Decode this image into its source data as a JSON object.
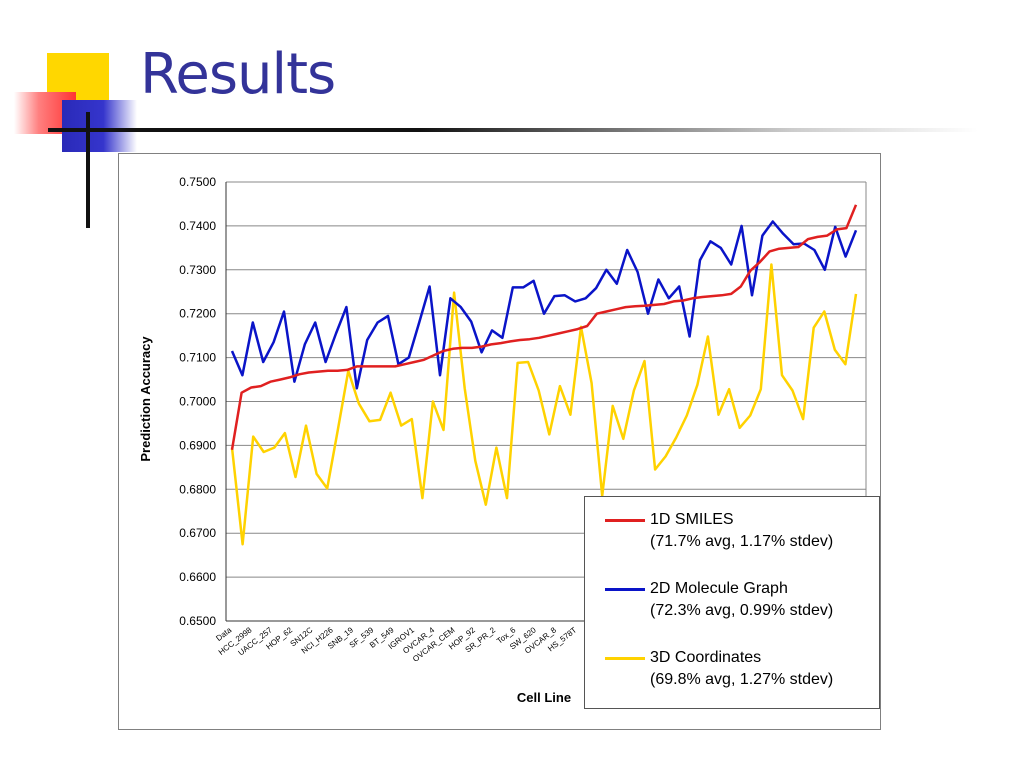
{
  "slide": {
    "title": "Results"
  },
  "chart_data": {
    "type": "line",
    "xlabel": "Cell Line",
    "ylabel": "Prediction Accuracy",
    "ylim": [
      0.65,
      0.75
    ],
    "y_ticks": [
      "0.6500",
      "0.6600",
      "0.6700",
      "0.6800",
      "0.6900",
      "0.7000",
      "0.7100",
      "0.7200",
      "0.7300",
      "0.7400",
      "0.7500"
    ],
    "x_tick_labels": [
      "Data",
      "HCC_2998",
      "UACC_257",
      "HOP_62",
      "SN12C",
      "NCI_H226",
      "SNB_19",
      "SF_539",
      "BT_549",
      "IGROV1",
      "OVCAR_4",
      "OVCAR_CEM",
      "HOP_92",
      "SR_PR_2",
      "Tox_6",
      "SW_620",
      "OVCAR_8",
      "HS_578T"
    ],
    "grid": "horizontal",
    "legend_position": "bottom-right",
    "series": [
      {
        "name": "1D SMILES",
        "note": "(71.7% avg, 1.17% stdev)",
        "color": "#e02020",
        "values": [
          0.689,
          0.702,
          0.7032,
          0.7035,
          0.7045,
          0.705,
          0.7055,
          0.7062,
          0.7066,
          0.7068,
          0.707,
          0.707,
          0.7072,
          0.708,
          0.708,
          0.708,
          0.708,
          0.708,
          0.7085,
          0.709,
          0.7095,
          0.7105,
          0.7115,
          0.712,
          0.7122,
          0.7122,
          0.7125,
          0.713,
          0.7133,
          0.7137,
          0.714,
          0.7142,
          0.7145,
          0.715,
          0.7155,
          0.716,
          0.7165,
          0.7172,
          0.72,
          0.7205,
          0.721,
          0.7215,
          0.7217,
          0.7218,
          0.722,
          0.7222,
          0.7228,
          0.723,
          0.7235,
          0.7238,
          0.724,
          0.7242,
          0.7245,
          0.7262,
          0.7298,
          0.7318,
          0.7342,
          0.7348,
          0.735,
          0.7352,
          0.737,
          0.7375,
          0.7378,
          0.7392,
          0.7395,
          0.7448
        ]
      },
      {
        "name": "2D Molecule Graph",
        "note": "(72.3% avg, 0.99% stdev)",
        "color": "#0a14c8",
        "values": [
          0.7115,
          0.706,
          0.718,
          0.709,
          0.7135,
          0.7205,
          0.7045,
          0.713,
          0.718,
          0.709,
          0.7155,
          0.7215,
          0.703,
          0.714,
          0.718,
          0.7195,
          0.7085,
          0.71,
          0.718,
          0.7262,
          0.706,
          0.7235,
          0.7215,
          0.7182,
          0.7112,
          0.7162,
          0.7145,
          0.726,
          0.726,
          0.7275,
          0.72,
          0.724,
          0.7242,
          0.7228,
          0.7235,
          0.7258,
          0.73,
          0.7268,
          0.7345,
          0.7295,
          0.72,
          0.7278,
          0.7235,
          0.7262,
          0.7148,
          0.7322,
          0.7365,
          0.735,
          0.7312,
          0.74,
          0.7242,
          0.7378,
          0.741,
          0.7382,
          0.7358,
          0.736,
          0.7345,
          0.73,
          0.7398,
          0.733,
          0.739
        ]
      },
      {
        "name": "3D Coordinates",
        "note": "(69.8% avg, 1.27% stdev)",
        "color": "#ffd200",
        "values": [
          0.6895,
          0.6675,
          0.692,
          0.6885,
          0.6895,
          0.6928,
          0.6828,
          0.6945,
          0.6835,
          0.6802,
          0.6935,
          0.707,
          0.6995,
          0.6955,
          0.6958,
          0.702,
          0.6945,
          0.696,
          0.678,
          0.7,
          0.6935,
          0.7248,
          0.703,
          0.6865,
          0.6765,
          0.6895,
          0.678,
          0.7088,
          0.709,
          0.7025,
          0.6925,
          0.7035,
          0.697,
          0.717,
          0.7042,
          0.6785,
          0.699,
          0.6915,
          0.7025,
          0.7092,
          0.6845,
          0.6875,
          0.6918,
          0.6968,
          0.7038,
          0.7148,
          0.697,
          0.7028,
          0.694,
          0.6968,
          0.7028,
          0.7312,
          0.706,
          0.7025,
          0.696,
          0.7168,
          0.7205,
          0.7118,
          0.7085,
          0.7245
        ]
      }
    ]
  }
}
